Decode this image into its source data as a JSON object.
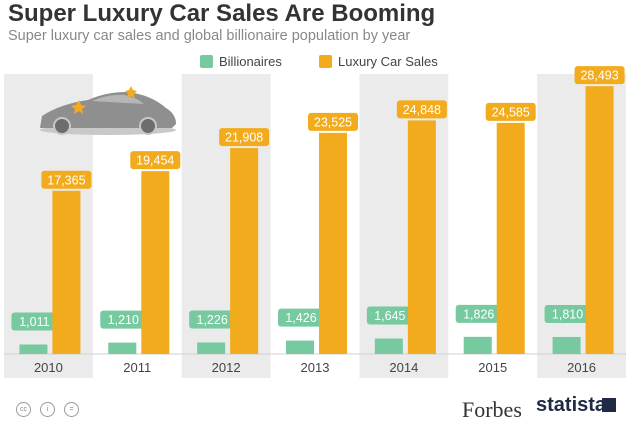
{
  "header": {
    "title": "Super Luxury Car Sales Are Booming",
    "subtitle": "Super luxury car sales and global billionaire population by year"
  },
  "colors": {
    "billionaires": "#77c9a0",
    "car_sales": "#f2ab1c",
    "band": "#ebebeb",
    "axis_text": "#444444"
  },
  "footer": {
    "license_icons": [
      "cc-icon",
      "by-icon",
      "equals-icon"
    ],
    "forbes_logo": "Forbes",
    "statista_logo": "statista"
  },
  "chart_data": {
    "type": "bar",
    "title": "Super Luxury Car Sales Are Booming",
    "subtitle": "Super luxury car sales and global billionaire population by year",
    "categories": [
      "2010",
      "2011",
      "2012",
      "2013",
      "2014",
      "2015",
      "2016"
    ],
    "series": [
      {
        "name": "Billionaires",
        "values": [
          1011,
          1210,
          1226,
          1426,
          1645,
          1826,
          1810
        ],
        "labels": [
          "1,011",
          "1,210",
          "1,226",
          "1,426",
          "1,645",
          "1,826",
          "1,810"
        ]
      },
      {
        "name": "Luxury Car Sales",
        "values": [
          17365,
          19454,
          21908,
          23525,
          24848,
          24585,
          28493
        ],
        "labels": [
          "17,365",
          "19,454",
          "21,908",
          "23,525",
          "24,848",
          "24,585",
          "28,493"
        ]
      }
    ],
    "ylim": [
      0,
      30000
    ],
    "grid": false,
    "legend": "top-center",
    "shaded_categories": [
      "2010",
      "2012",
      "2014",
      "2016"
    ],
    "decoration": "sports-car-icon"
  }
}
